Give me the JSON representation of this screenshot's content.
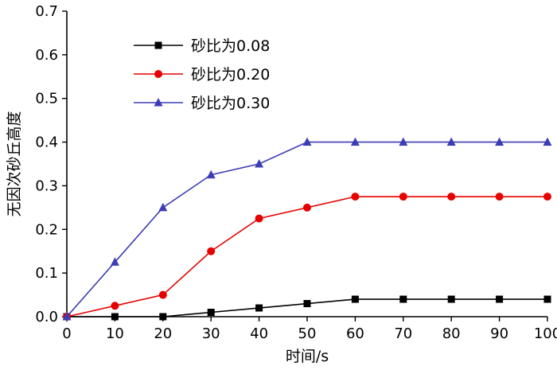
{
  "chart_data": {
    "type": "line",
    "title": "",
    "xlabel": "时间/s",
    "ylabel": "无因次砂丘高度",
    "x": [
      0,
      10,
      20,
      30,
      40,
      50,
      60,
      70,
      80,
      90,
      100
    ],
    "series": [
      {
        "name": "砂比为0.08",
        "color": "#000000",
        "marker": "square",
        "values": [
          0.0,
          0.0,
          0.0,
          0.01,
          0.02,
          0.03,
          0.04,
          0.04,
          0.04,
          0.04,
          0.04
        ]
      },
      {
        "name": "砂比为0.20",
        "color": "#e60000",
        "marker": "circle",
        "values": [
          0.0,
          0.025,
          0.05,
          0.15,
          0.225,
          0.25,
          0.275,
          0.275,
          0.275,
          0.275,
          0.275
        ]
      },
      {
        "name": "砂比为0.30",
        "color": "#3c3cb4",
        "marker": "triangle",
        "values": [
          0.0,
          0.125,
          0.25,
          0.325,
          0.35,
          0.4,
          0.4,
          0.4,
          0.4,
          0.4,
          0.4
        ]
      }
    ],
    "xlim": [
      0,
      100
    ],
    "ylim": [
      0.0,
      0.7
    ],
    "xticks": [
      0,
      10,
      20,
      30,
      40,
      50,
      60,
      70,
      80,
      90,
      100
    ],
    "yticks": [
      0.0,
      0.1,
      0.2,
      0.3,
      0.4,
      0.5,
      0.6,
      0.7
    ],
    "ytick_decimals": 1,
    "grid": false,
    "legend_position": "top-left-inside",
    "axis_color": "#000000"
  }
}
